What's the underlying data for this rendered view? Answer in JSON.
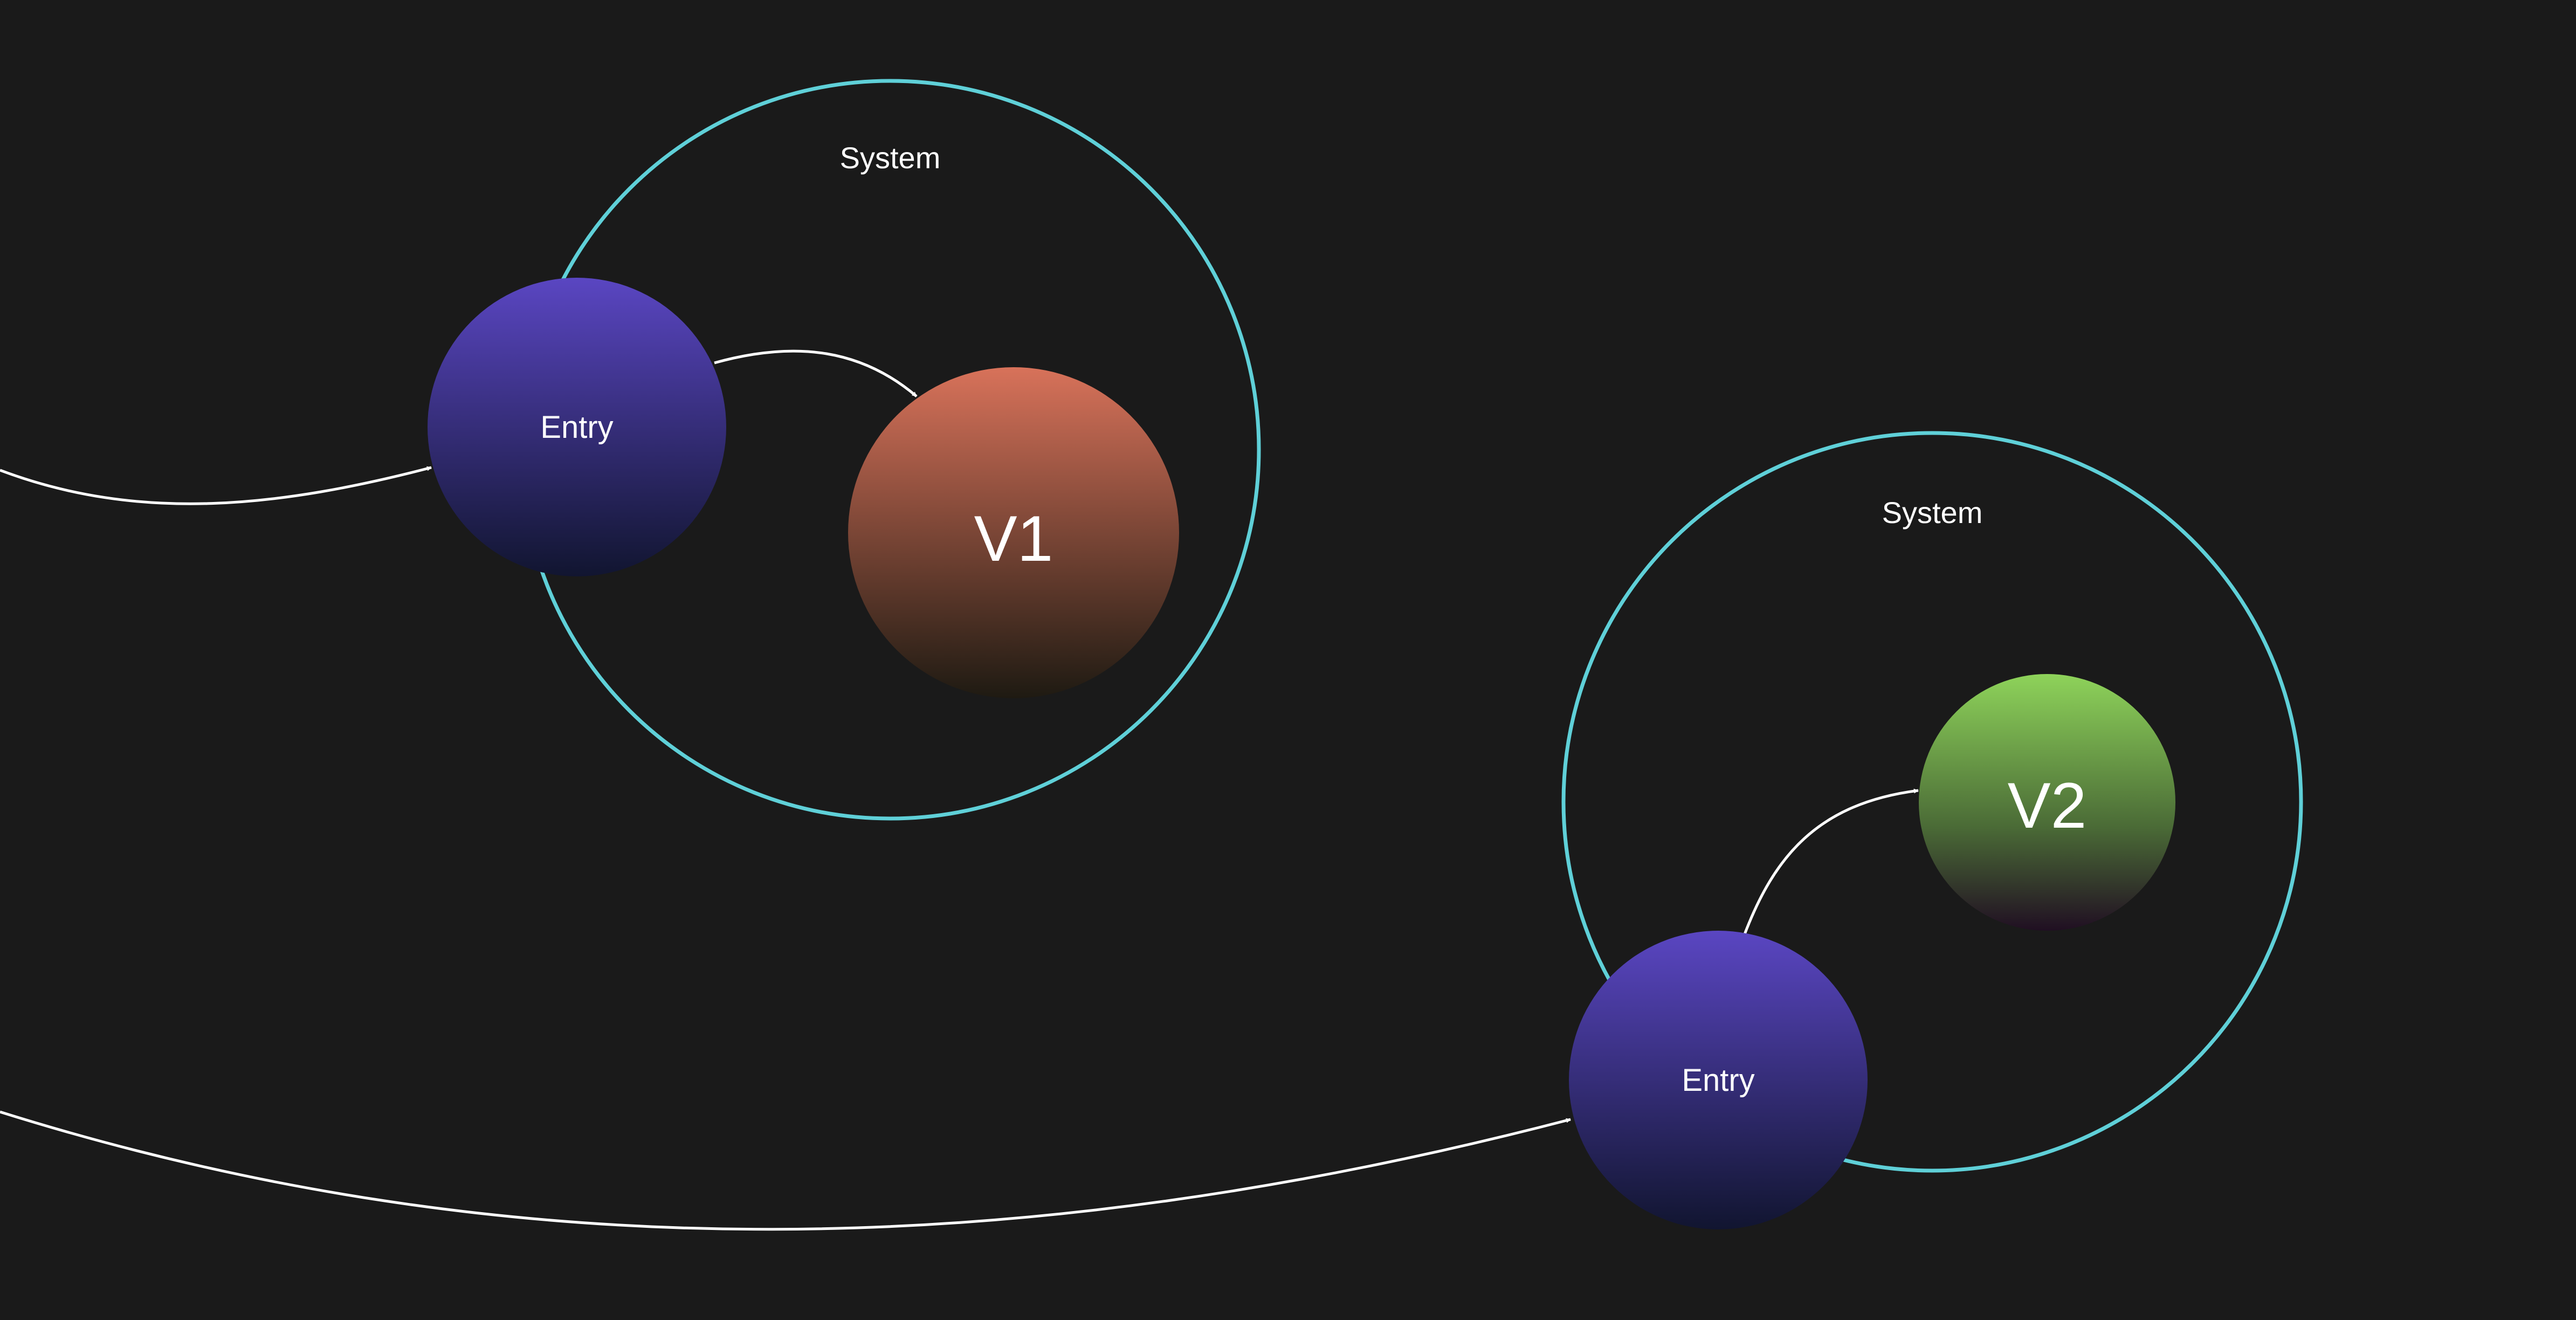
{
  "colors": {
    "background": "#1a1a1a",
    "system_ring": "#5fd0d8",
    "connector": "#ffffff",
    "label_text": "#ffffff",
    "entry_top": "#5a46c2",
    "entry_bottom": "#111530",
    "v1_top": "#d8725a",
    "v1_bottom": "#1e1a12",
    "v2_top": "#8ed35a",
    "v2_mid": "#4a6a36",
    "v2_bottom": "#200f22"
  },
  "diagram": {
    "system1": {
      "label": "System",
      "entry_label": "Entry",
      "version_label": "V1"
    },
    "system2": {
      "label": "System",
      "entry_label": "Entry",
      "version_label": "V2"
    }
  }
}
